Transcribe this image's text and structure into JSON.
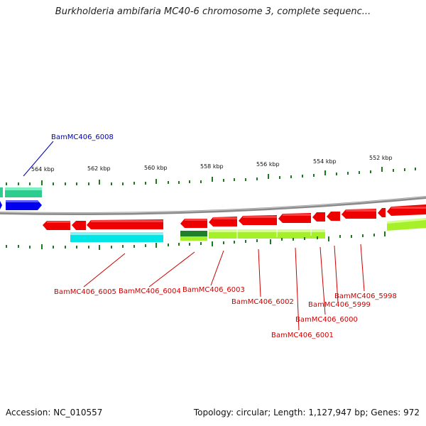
{
  "title": "Burkholderia ambifaria MC40-6 chromosome 3, complete sequenc...",
  "footer": {
    "accession": "Accession: NC_010557",
    "summary": "Topology: circular; Length: 1,127,947 bp; Genes: 972"
  },
  "scale": {
    "tick_labels": [
      "564 kbp",
      "562 kbp",
      "560 kbp",
      "558 kbp",
      "556 kbp",
      "554 kbp",
      "552 kbp"
    ]
  },
  "genes": {
    "top_labels": [
      "BamMC406_6008"
    ],
    "bottom_labels": [
      "BamMC406_6005",
      "BamMC406_6004",
      "BamMC406_6003",
      "BamMC406_6002",
      "BamMC406_6001",
      "BamMC406_6000",
      "BamMC406_5999",
      "BamMC406_5998"
    ]
  },
  "colors": {
    "forward_cds": "#0000ee",
    "reverse_cds": "#ee0000",
    "gc_high": "#2ecc8f",
    "gc_cyan": "#00e5e5",
    "gc_lime": "#a6f02a",
    "gc_dark": "#1f7f2a",
    "backbone": "#8a8a8a",
    "tick": "#1a7a1a",
    "label_blue": "#0000bb",
    "label_red": "#cc0000"
  }
}
